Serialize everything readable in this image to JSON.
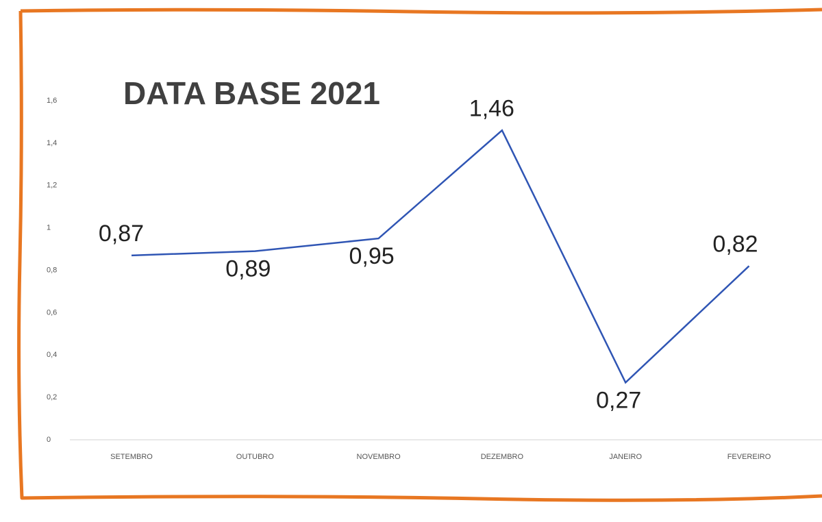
{
  "chart_data": {
    "type": "line",
    "title": "DATA BASE 2021",
    "categories": [
      "SETEMBRO",
      "OUTUBRO",
      "NOVEMBRO",
      "DEZEMBRO",
      "JANEIRO",
      "FEVEREIRO"
    ],
    "series": [
      {
        "name": "Data base 2021",
        "color": "#2f55b4",
        "values": [
          0.87,
          0.89,
          0.95,
          1.46,
          0.27,
          0.82
        ],
        "value_labels": [
          "0,87",
          "0,89",
          "0,95",
          "1,46",
          "0,27",
          "0,82"
        ]
      }
    ],
    "ylim": [
      0,
      1.6
    ],
    "yticks": [
      0,
      {
        "value": 0.2,
        "label": "0,2"
      },
      {
        "value": 0.4,
        "label": "0,4"
      },
      {
        "value": 0.6,
        "label": "0,6"
      },
      {
        "value": 0.8,
        "label": "0,8"
      },
      1,
      {
        "value": 1.2,
        "label": "1,2"
      },
      {
        "value": 1.4,
        "label": "1,4"
      },
      {
        "value": 1.6,
        "label": "1,6"
      }
    ],
    "grid": false
  }
}
